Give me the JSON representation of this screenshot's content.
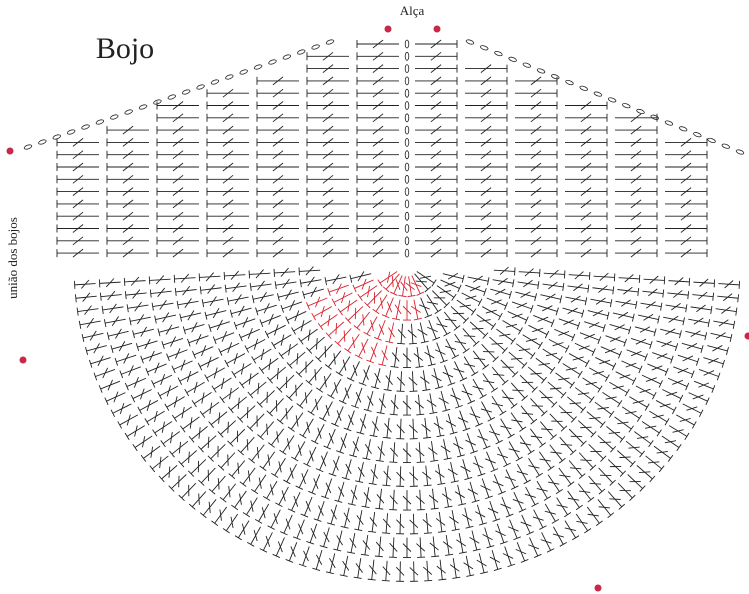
{
  "title": "Bojo",
  "top_label": "Alça",
  "side_label": "união dos bojos"
}
